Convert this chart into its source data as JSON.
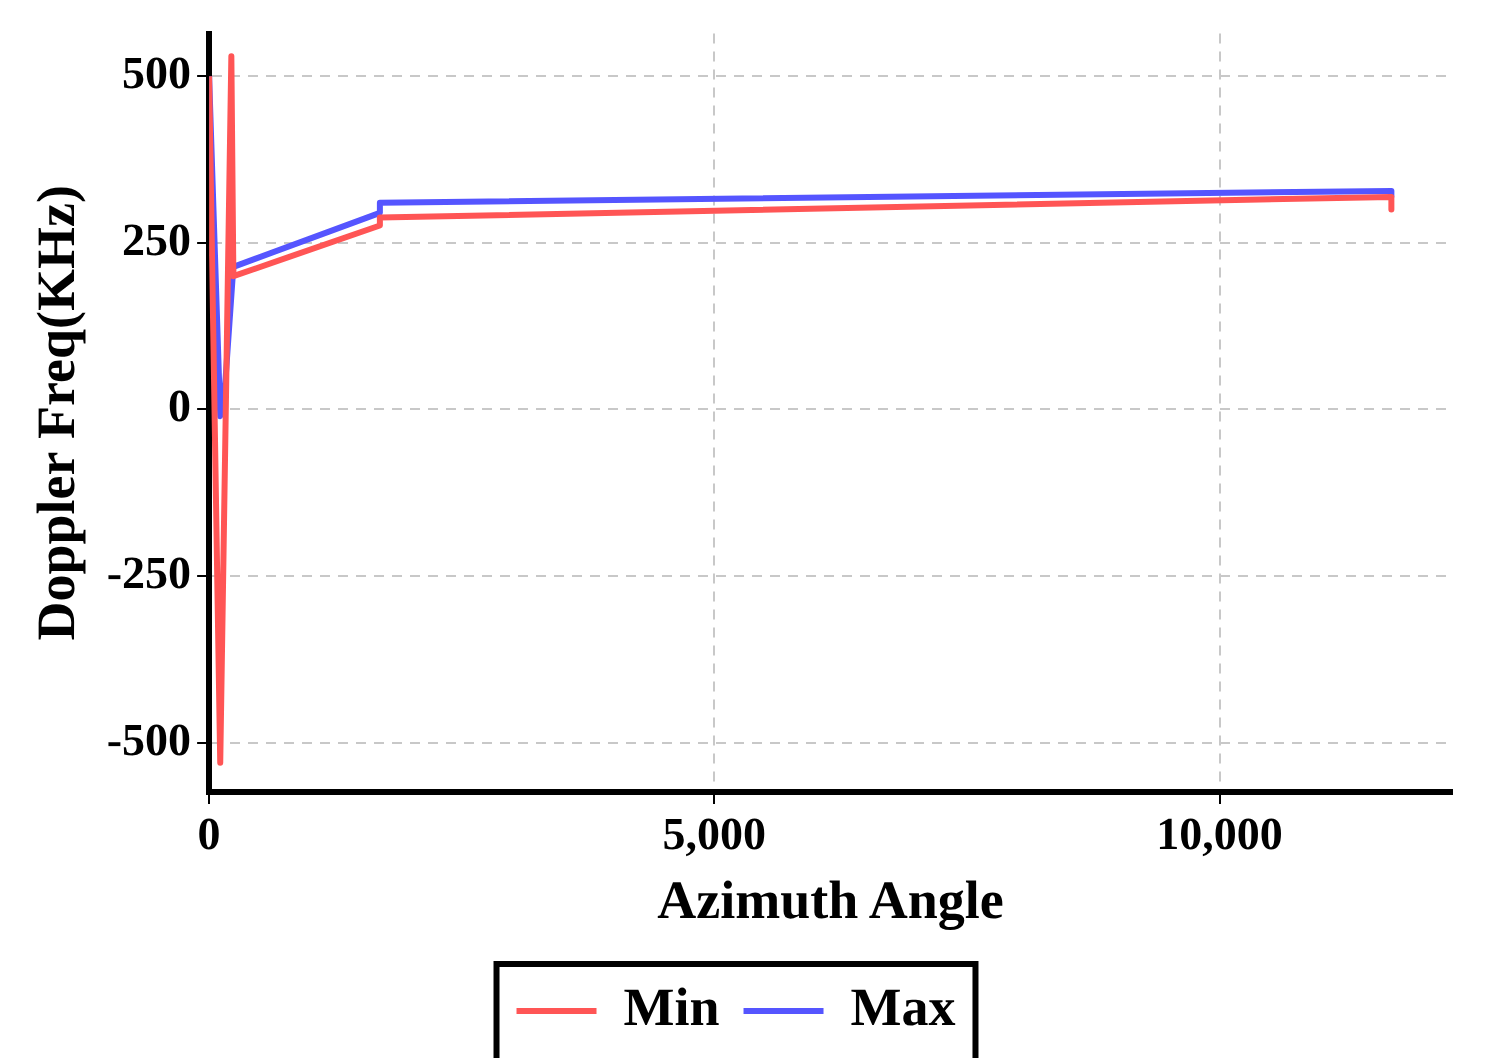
{
  "chart_data": {
    "type": "line",
    "xlabel": "Azimuth Angle",
    "ylabel": "Doppler Freq(KHz)",
    "xlim": [
      0,
      12300
    ],
    "xticks": [
      {
        "value": 0,
        "label": "0"
      },
      {
        "value": 5000,
        "label": "5,000"
      },
      {
        "value": 10000,
        "label": "10,000"
      }
    ],
    "ylim": [
      -574,
      564
    ],
    "yticks": [
      -500,
      -250,
      0,
      250,
      500
    ],
    "grid": true,
    "legend": "bottom",
    "marker": "none",
    "line_style": "solid",
    "series": [
      {
        "name": "Min",
        "color": "#ff5555",
        "x": [
          0,
          110,
          220,
          240,
          1690,
          1690,
          11700,
          11700
        ],
        "values": [
          500,
          -530,
          530,
          200,
          276,
          288,
          319,
          300
        ]
      },
      {
        "name": "Max",
        "color": "#5555ff",
        "x": [
          0,
          110,
          160,
          240,
          1690,
          1690,
          11700,
          11700
        ],
        "values": [
          500,
          -10,
          40,
          214,
          295,
          310,
          328,
          320
        ]
      }
    ]
  }
}
